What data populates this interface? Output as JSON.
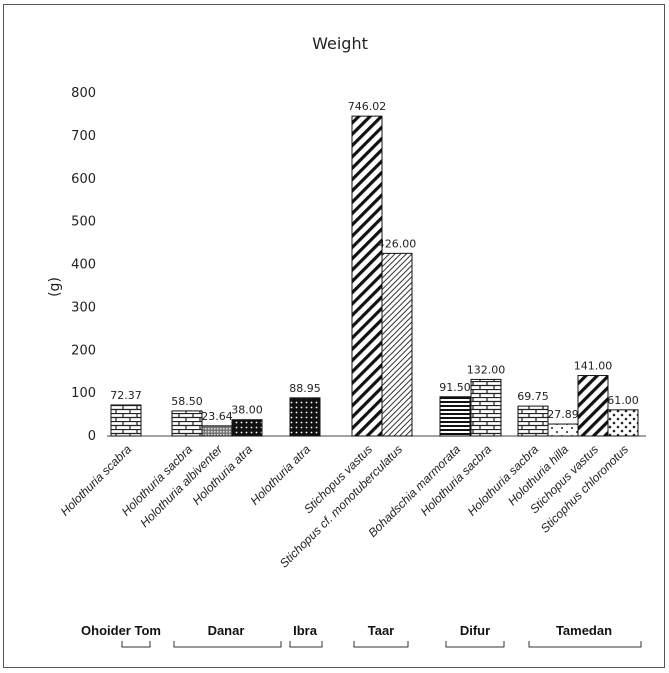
{
  "chart_data": {
    "type": "bar",
    "title": "Weight",
    "ylabel": "(g)",
    "xlabel": "",
    "ylim": [
      0,
      800
    ],
    "yticks": [
      0,
      100,
      200,
      300,
      400,
      500,
      600,
      700,
      800
    ],
    "grid": false,
    "legend": "none",
    "bars": [
      {
        "category": "Holothuria scabra",
        "group": "Ohoider Tom",
        "value": 72.37,
        "label": "72.37",
        "pattern": "brick"
      },
      {
        "category": "Holothuria sacbra",
        "group": "Danar",
        "value": 58.5,
        "label": "58.50",
        "pattern": "brick"
      },
      {
        "category": "Holothuria albiventer",
        "group": "Danar",
        "value": 23.64,
        "label": "23.64",
        "pattern": "crosshatch"
      },
      {
        "category": "Holothuria atra",
        "group": "Danar",
        "value": 38.0,
        "label": "38.00",
        "pattern": "dark-dots"
      },
      {
        "category": "Holothuria atra",
        "group": "Ibra",
        "value": 88.95,
        "label": "88.95",
        "pattern": "dark-dots"
      },
      {
        "category": "Stichopus vastus",
        "group": "Taar",
        "value": 746.02,
        "label": "746.02",
        "pattern": "wide-diagonal"
      },
      {
        "category": "Stichopus cf. monotuberculatus",
        "group": "Taar",
        "value": 426.0,
        "label": "426.00",
        "pattern": "fine-diagonal"
      },
      {
        "category": "Bohadschia marmorata",
        "group": "Difur",
        "value": 91.5,
        "label": "91.50",
        "pattern": "horizontal"
      },
      {
        "category": "Holothuria sacbra",
        "group": "Difur",
        "value": 132.0,
        "label": "132.00",
        "pattern": "brick"
      },
      {
        "category": "Holothuria sacbra",
        "group": "Tamedan",
        "value": 69.75,
        "label": "69.75",
        "pattern": "brick"
      },
      {
        "category": "Holothuria hilla",
        "group": "Tamedan",
        "value": 27.89,
        "label": "27.89",
        "pattern": "sparse-dots"
      },
      {
        "category": "Stichopus vastus",
        "group": "Tamedan",
        "value": 141.0,
        "label": "141.00",
        "pattern": "wide-diagonal"
      },
      {
        "category": "Sticophus chloronotus",
        "group": "Tamedan",
        "value": 61.0,
        "label": "61.00",
        "pattern": "circles"
      }
    ],
    "groups": [
      "Ohoider Tom",
      "Danar",
      "Ibra",
      "Taar",
      "Difur",
      "Tamedan"
    ]
  }
}
